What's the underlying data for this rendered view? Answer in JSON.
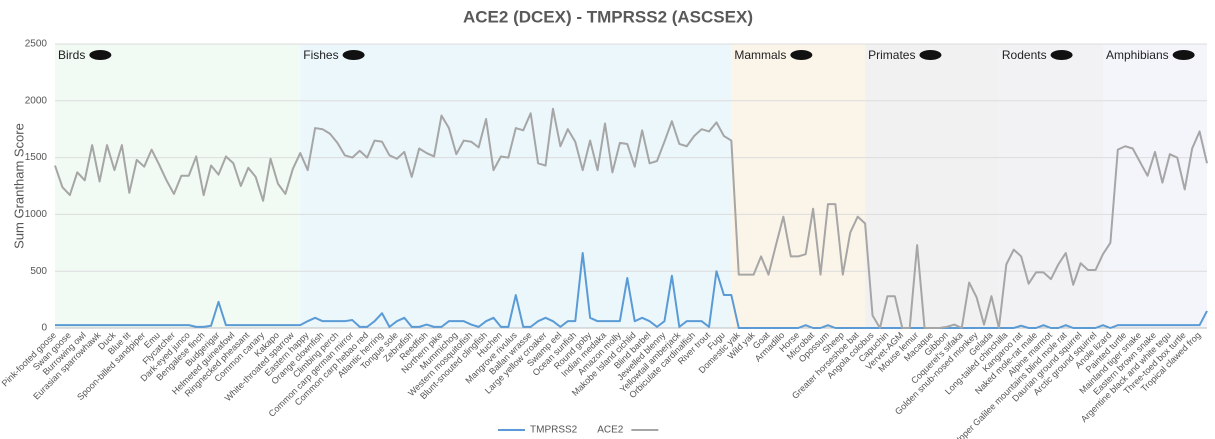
{
  "chart_data": {
    "type": "line",
    "title": "ACE2 (DCEX) - TMPRSS2 (ASCSEX)",
    "y_label": "Sum Grantham Score",
    "ylim": [
      0,
      2500
    ],
    "yticks": [
      0,
      500,
      1000,
      1500,
      2000,
      2500
    ],
    "grid": true,
    "legend": "bottom",
    "groups": [
      {
        "label": "Birds",
        "first": "Pink-footed goose",
        "color": "#f1faf3"
      },
      {
        "label": "Fishes",
        "first": "Eastern happy",
        "color": "#ecf7fc"
      },
      {
        "label": "Mammals",
        "first": "Domestic yak",
        "color": "#fbf5e9"
      },
      {
        "label": "Primates",
        "first": "Angola colobus",
        "color": "#f1f1f1"
      },
      {
        "label": "Rodents",
        "first": "Long-tailed chinchilla",
        "color": "#f2f2f4"
      },
      {
        "label": "Amphibians",
        "first": "Anole lizard",
        "color": "#f4f5fb"
      }
    ],
    "categories": [
      "Pink-footed goose",
      null,
      "Swan goose",
      null,
      "Burrowing owl",
      null,
      "Eurasian sparrowhawk",
      null,
      "Duck",
      null,
      "Blue tit",
      null,
      "Spoon-billed sandpiper",
      null,
      "Emu",
      null,
      "Flycatcher",
      null,
      "Dark-eyed junco",
      null,
      "Bengalese finch",
      null,
      "Budgerigar",
      null,
      "Helmeted guineafowl",
      null,
      "Ringnecked pheasant",
      null,
      "Common canary",
      null,
      "Kakapo",
      null,
      "White-throated sparrow",
      null,
      "Eastern happy",
      null,
      "Orange clownfish",
      null,
      "Climbing perch",
      null,
      "Common carp german mirror",
      null,
      "Common carp hebao red",
      null,
      "Atlantic herring",
      null,
      "Tongue sole",
      null,
      "Zebrafish",
      null,
      "Reedfish",
      null,
      "Northern pike",
      null,
      "Mummichog",
      null,
      "Western mosquitofish",
      null,
      "Blunt-snouted clingfish",
      null,
      "Huchen",
      null,
      "Mangrove rivulus",
      null,
      "Ballan wrasse",
      null,
      "Large yellow croaker",
      null,
      "Swamp eel",
      null,
      "Ocean sunfish",
      null,
      "Round goby",
      null,
      "Indian medaka",
      null,
      "Amazon molly",
      null,
      "Makobe Island cichlid",
      null,
      "Blind barbel",
      null,
      "Jewelled blenny",
      null,
      "Yellowtail amberjack",
      null,
      "Orbiculate cardinalfish",
      null,
      "River trout",
      null,
      "Fugu",
      null,
      "Domestic yak",
      null,
      "Wild yak",
      null,
      "Goat",
      null,
      "Armadillo",
      null,
      "Horse",
      null,
      "Microbat",
      null,
      "Opossum",
      null,
      "Sheep",
      null,
      "Greater horseshoe bat",
      null,
      "Angola colobus",
      null,
      "Capuchin",
      null,
      "Vervet-AGM",
      null,
      "Mouse lemur",
      null,
      "Macaque",
      null,
      "Gibbon",
      null,
      "Coquerel's sifaka",
      null,
      "Golden snub-nosed monkey",
      null,
      "Gelada",
      null,
      "Long-tailed chinchilla",
      null,
      "Kangaroo rat",
      null,
      "Naked mole-rat male",
      null,
      "Alpine marmot",
      null,
      "Upper Galilee mountains blind mole rat",
      null,
      "Daurian ground squirrel",
      null,
      "Arctic ground squirrel",
      null,
      "Anole lizard",
      null,
      "Painted turtle",
      null,
      "Mainland tiger snake",
      null,
      "Eastern brown snake",
      null,
      "Argentine black and white tegu",
      null,
      "Three-toed box turtle",
      null,
      "Tropical clawed frog",
      null
    ],
    "series": [
      {
        "name": "TMPRSS2",
        "color": "#5b9bd5",
        "values": [
          25,
          25,
          25,
          25,
          25,
          25,
          25,
          25,
          25,
          25,
          25,
          25,
          25,
          25,
          25,
          25,
          25,
          25,
          25,
          10,
          10,
          20,
          230,
          25,
          25,
          25,
          25,
          25,
          25,
          25,
          25,
          25,
          25,
          25,
          60,
          90,
          60,
          60,
          60,
          60,
          70,
          10,
          10,
          60,
          130,
          10,
          60,
          90,
          10,
          10,
          30,
          10,
          10,
          60,
          60,
          60,
          30,
          10,
          60,
          90,
          10,
          10,
          290,
          10,
          10,
          60,
          90,
          60,
          10,
          60,
          60,
          660,
          90,
          60,
          60,
          60,
          60,
          440,
          60,
          90,
          60,
          10,
          60,
          460,
          10,
          60,
          60,
          60,
          10,
          500,
          290,
          290,
          0,
          0,
          0,
          0,
          0,
          0,
          0,
          0,
          0,
          25,
          0,
          0,
          25,
          0,
          0,
          0,
          0,
          0,
          0,
          0,
          0,
          0,
          0,
          0,
          0,
          0,
          0,
          0,
          0,
          0,
          0,
          0,
          0,
          0,
          0,
          0,
          0,
          0,
          20,
          0,
          0,
          25,
          0,
          0,
          25,
          0,
          0,
          0,
          0,
          25,
          0,
          25,
          25,
          25,
          25,
          25,
          25,
          25,
          25,
          25,
          25,
          25,
          25,
          150
        ]
      },
      {
        "name": "ACE2",
        "color": "#a6a6a6",
        "values": [
          1430,
          1240,
          1170,
          1370,
          1300,
          1610,
          1290,
          1610,
          1390,
          1610,
          1190,
          1480,
          1420,
          1570,
          1440,
          1300,
          1180,
          1340,
          1340,
          1510,
          1170,
          1430,
          1350,
          1510,
          1450,
          1250,
          1410,
          1330,
          1120,
          1490,
          1270,
          1180,
          1400,
          1540,
          1390,
          1760,
          1750,
          1710,
          1630,
          1520,
          1500,
          1560,
          1500,
          1650,
          1640,
          1520,
          1490,
          1550,
          1330,
          1580,
          1540,
          1510,
          1870,
          1760,
          1530,
          1650,
          1640,
          1590,
          1840,
          1390,
          1510,
          1500,
          1760,
          1740,
          1890,
          1450,
          1430,
          1930,
          1600,
          1750,
          1640,
          1390,
          1650,
          1390,
          1800,
          1370,
          1630,
          1620,
          1420,
          1740,
          1450,
          1470,
          1640,
          1820,
          1620,
          1600,
          1690,
          1750,
          1730,
          1810,
          1690,
          1650,
          470,
          470,
          470,
          630,
          470,
          730,
          980,
          630,
          630,
          650,
          1050,
          470,
          1090,
          1090,
          470,
          840,
          980,
          920,
          110,
          0,
          280,
          280,
          0,
          0,
          730,
          0,
          0,
          0,
          10,
          30,
          0,
          400,
          270,
          30,
          280,
          0,
          560,
          690,
          630,
          390,
          490,
          490,
          430,
          560,
          660,
          380,
          570,
          510,
          510,
          650,
          750,
          1570,
          1600,
          1580,
          1460,
          1340,
          1550,
          1280,
          1530,
          1500,
          1220,
          1580,
          1730,
          1450
        ]
      }
    ]
  }
}
